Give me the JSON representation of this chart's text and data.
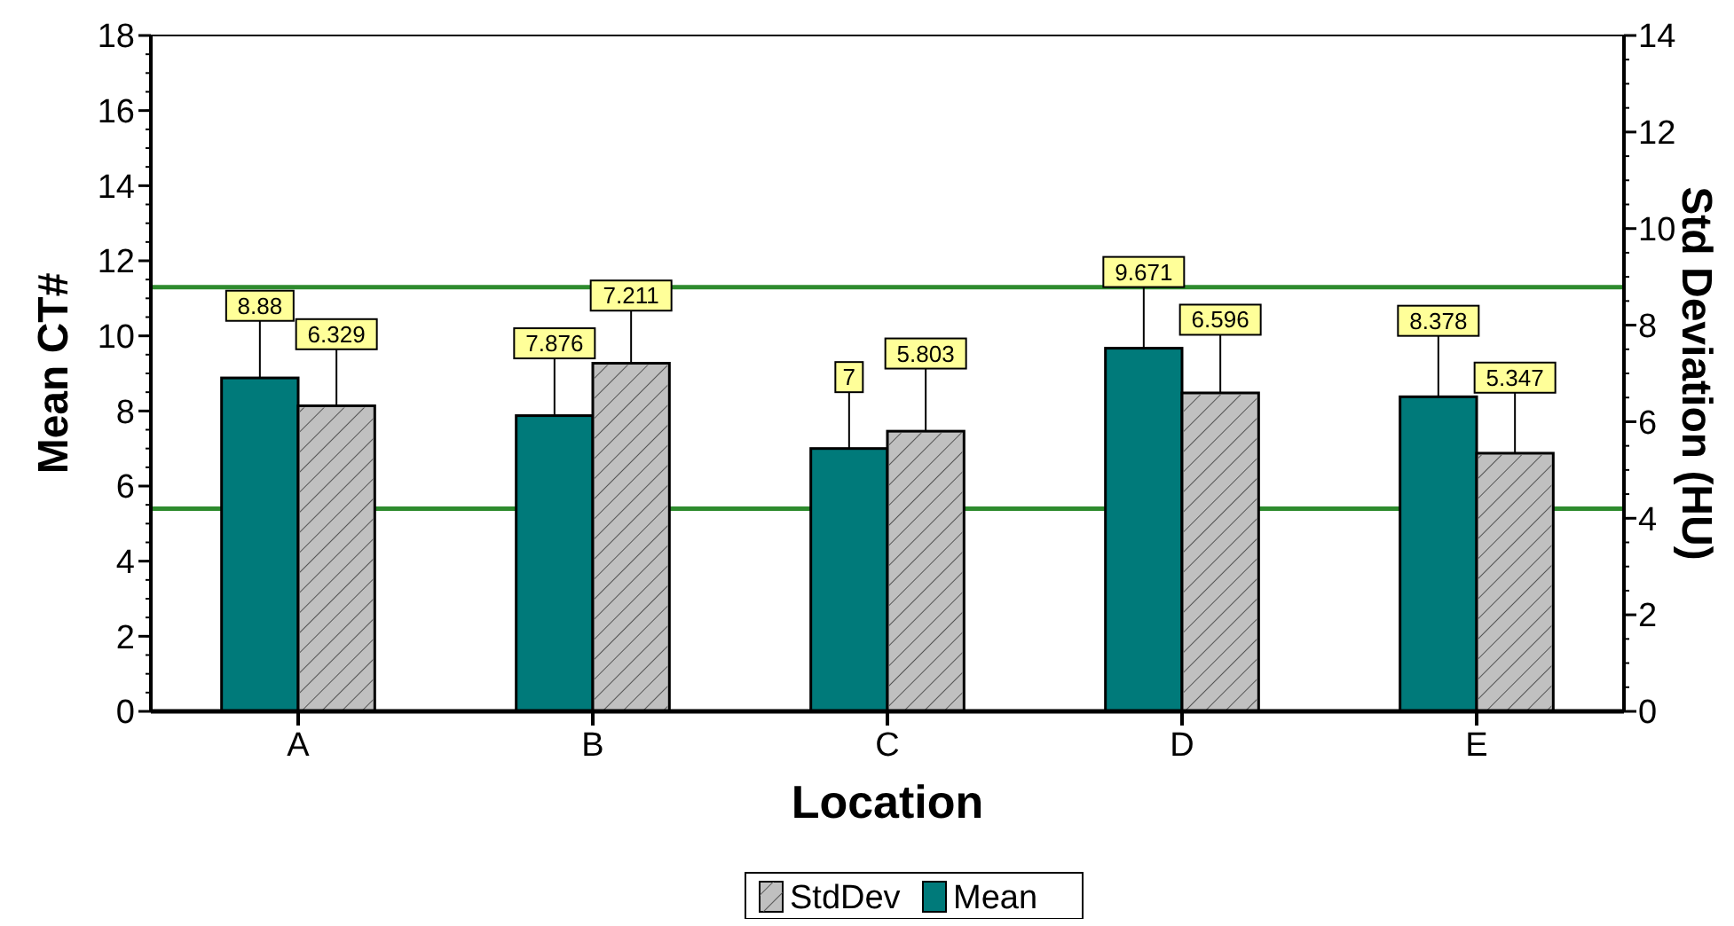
{
  "chart_data": {
    "type": "bar",
    "xlabel": "Location",
    "ylabel": "Mean CT#",
    "y2label": "Std Deviation (HU)",
    "categories": [
      "A",
      "B",
      "C",
      "D",
      "E"
    ],
    "series": [
      {
        "name": "Mean",
        "color": "#007a7a",
        "values": [
          8.88,
          7.876,
          7,
          9.671,
          8.378
        ],
        "errors": [
          [
            8.88,
            10.4
          ],
          [
            7.876,
            9.4
          ],
          [
            7,
            8.5
          ],
          [
            9.671,
            11.3
          ],
          [
            8.378,
            10.0
          ]
        ]
      },
      {
        "name": "StdDev",
        "color": "#c0c0c0",
        "axis": "y2",
        "values": [
          6.329,
          7.211,
          5.803,
          6.596,
          5.347
        ],
        "errors": [
          [
            6.329,
            7.5
          ],
          [
            7.211,
            8.3
          ],
          [
            5.803,
            7.1
          ],
          [
            6.596,
            7.8
          ],
          [
            5.347,
            6.6
          ]
        ]
      }
    ],
    "ylim": [
      0,
      18
    ],
    "yticks": [
      0,
      2,
      4,
      6,
      8,
      10,
      12,
      14,
      16,
      18
    ],
    "y2lim": [
      0,
      14
    ],
    "y2ticks": [
      0,
      2,
      4,
      6,
      8,
      10,
      12,
      14
    ],
    "ref_lines": [
      {
        "axis": "y",
        "value": 11.3,
        "color": "#2e8b2e"
      },
      {
        "axis": "y",
        "value": 5.4,
        "color": "#2e8b2e"
      }
    ],
    "data_labels": true,
    "legend": "bottom",
    "grid": false
  }
}
